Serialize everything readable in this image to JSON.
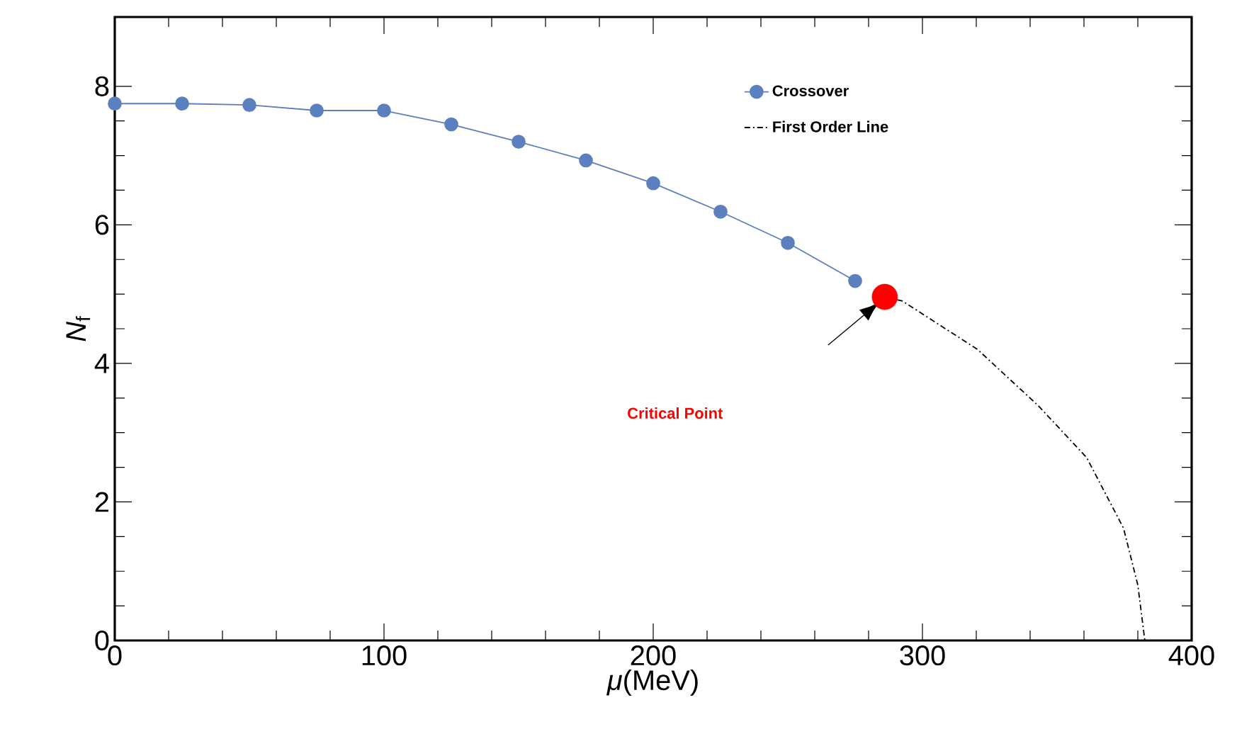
{
  "chart_data": {
    "type": "line",
    "xlabel": "*μ*(MeV)",
    "ylabel": "*N*$_{f}$",
    "xlim": [
      0,
      400
    ],
    "ylim": [
      0,
      9
    ],
    "xticks": [
      0,
      100,
      200,
      300,
      400
    ],
    "yticks": [
      0,
      2,
      4,
      6,
      8
    ],
    "legend": "top right",
    "grid": false,
    "series": [
      {
        "name": "Crossover",
        "color": "#5b7fbf",
        "marker": "circle",
        "line_style": "solid",
        "x": [
          0,
          25,
          50,
          75,
          100,
          125,
          150,
          175,
          200,
          225,
          250,
          275
        ],
        "values": [
          7.75,
          7.75,
          7.73,
          7.65,
          7.65,
          7.45,
          7.2,
          6.93,
          6.6,
          6.19,
          5.74,
          5.19
        ]
      },
      {
        "name": "First Order Line",
        "color": "#000000",
        "marker": "none",
        "line_style": "dashdot",
        "x": [
          286,
          292.6,
          320.5,
          343,
          361,
          374.7,
          380,
          382.6
        ],
        "values": [
          4.96,
          4.9,
          4.2,
          3.39,
          2.64,
          1.62,
          0.8,
          0
        ]
      },
      {
        "type": "scatter",
        "color": "#ff0000",
        "marker": "circle",
        "x": [
          286
        ],
        "values": [
          4.96
        ]
      }
    ],
    "annotations": [
      "Critical Point"
    ]
  }
}
